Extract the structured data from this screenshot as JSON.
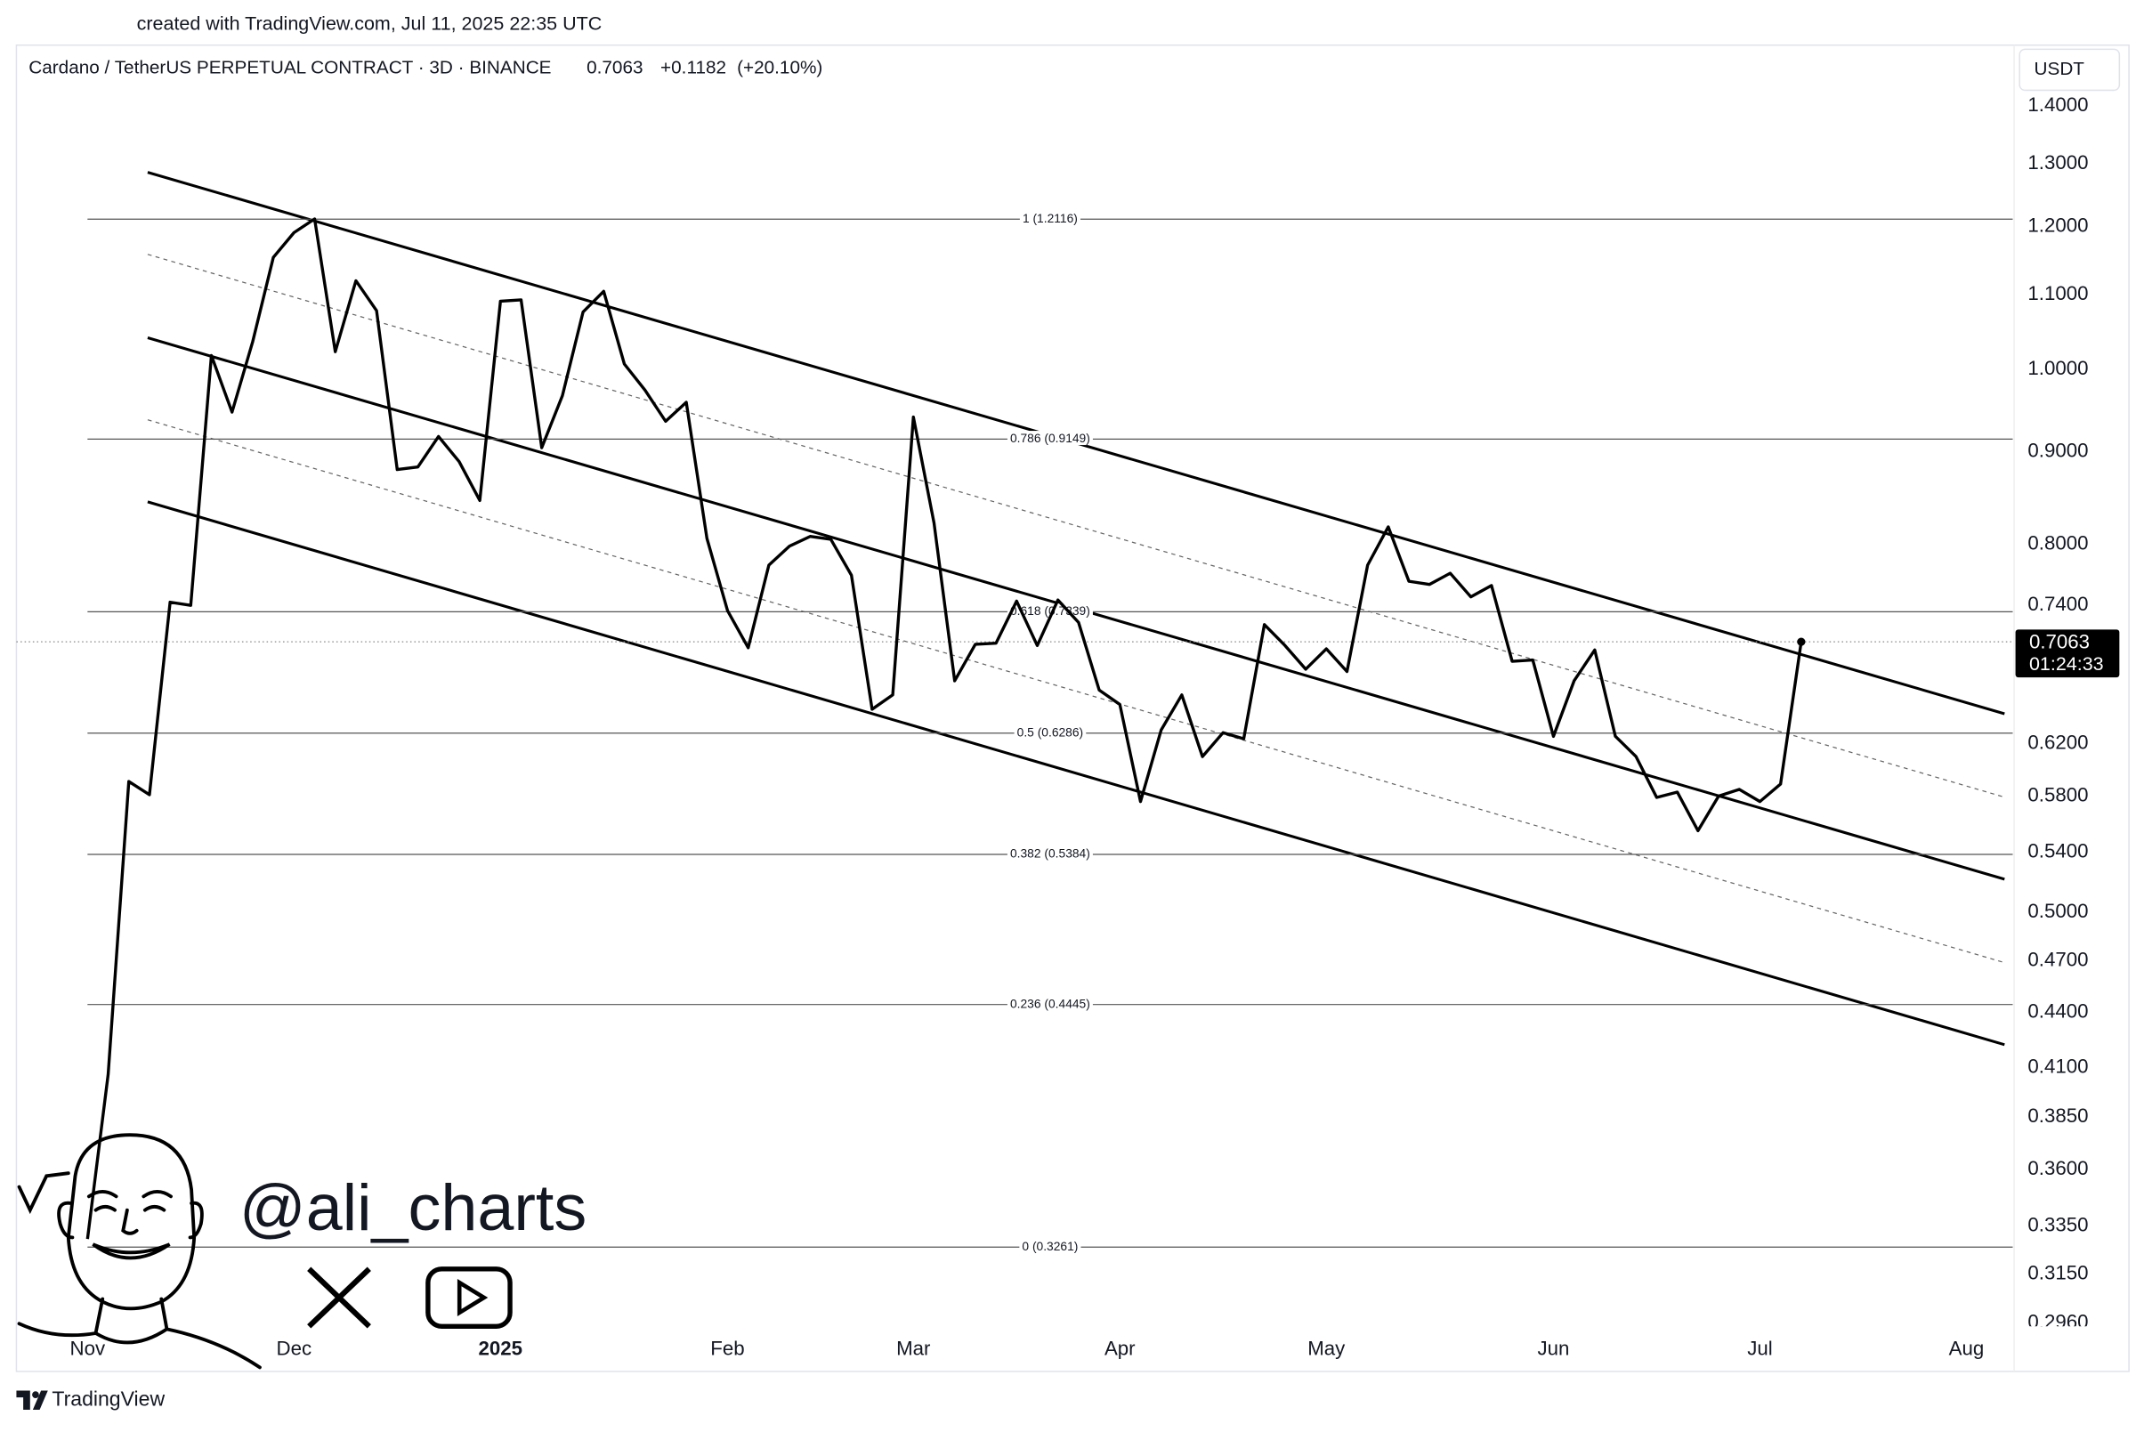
{
  "chart_data": {
    "type": "line",
    "created_with": "created with TradingView.com, Jul 11, 2025 22:35 UTC",
    "title": "Cardano / TetherUS PERPETUAL CONTRACT · 3D · BINANCE",
    "change": {
      "value": 0.1182,
      "label": "+0.1182"
    },
    "change_pct": {
      "value": 20.1,
      "label": "(+20.10%)"
    },
    "currency": "USDT",
    "countdown": "01:24:33",
    "watermark": "@ali_charts",
    "brand": "TradingView",
    "color": "#000000",
    "log_scale": true,
    "grid": false,
    "categories": [
      "Nov",
      null,
      null,
      null,
      null,
      null,
      null,
      null,
      null,
      null,
      "Dec",
      null,
      null,
      null,
      null,
      null,
      null,
      null,
      null,
      null,
      "2025",
      null,
      null,
      null,
      null,
      null,
      null,
      null,
      null,
      null,
      null,
      "Feb",
      null,
      null,
      null,
      null,
      null,
      null,
      null,
      null,
      "Mar",
      null,
      null,
      null,
      null,
      null,
      null,
      null,
      null,
      null,
      "Apr",
      null,
      null,
      null,
      null,
      null,
      null,
      null,
      null,
      null,
      "May",
      null,
      null,
      null,
      null,
      null,
      null,
      null,
      null,
      null,
      null,
      "Jun",
      null,
      null,
      null,
      null,
      null,
      null,
      null,
      null,
      null,
      "Jul",
      null,
      null,
      null,
      null,
      null,
      null,
      null,
      null,
      null,
      "Aug"
    ],
    "values": [
      0.3295,
      0.4066,
      0.591,
      0.581,
      0.743,
      0.74,
      1.018,
      0.947,
      1.036,
      1.154,
      1.191,
      1.212,
      1.023,
      1.12,
      1.078,
      0.88,
      0.883,
      0.918,
      0.889,
      0.846,
      1.091,
      1.093,
      0.905,
      0.967,
      1.076,
      1.105,
      1.007,
      0.974,
      0.936,
      0.959,
      0.806,
      0.735,
      0.701,
      0.779,
      0.798,
      0.808,
      0.805,
      0.769,
      0.648,
      0.66,
      0.941,
      0.822,
      0.672,
      0.704,
      0.705,
      0.744,
      0.703,
      0.745,
      0.724,
      0.664,
      0.652,
      0.576,
      0.631,
      0.66,
      0.61,
      0.629,
      0.624,
      0.722,
      0.703,
      0.682,
      0.7,
      0.68,
      0.779,
      0.818,
      0.763,
      0.76,
      0.771,
      0.748,
      0.759,
      0.689,
      0.69,
      0.626,
      0.672,
      0.699,
      0.626,
      0.61,
      0.579,
      0.583,
      0.555,
      0.58,
      0.585,
      0.576,
      0.589,
      0.7063,
      null,
      null,
      null,
      null,
      null,
      null,
      null,
      null
    ],
    "ylim": [
      0.2937,
      1.513
    ],
    "yticks": [
      {
        "value": 1.4,
        "label": "1.4000"
      },
      {
        "value": 1.3,
        "label": "1.3000"
      },
      {
        "value": 1.2,
        "label": "1.2000"
      },
      {
        "value": 1.1,
        "label": "1.1000"
      },
      {
        "value": 1.0,
        "label": "1.0000"
      },
      {
        "value": 0.9,
        "label": "0.9000"
      },
      {
        "value": 0.8,
        "label": "0.8000"
      },
      {
        "value": 0.74,
        "label": "0.7400"
      },
      {
        "value": 0.62,
        "label": "0.6200"
      },
      {
        "value": 0.58,
        "label": "0.5800"
      },
      {
        "value": 0.54,
        "label": "0.5400"
      },
      {
        "value": 0.5,
        "label": "0.5000"
      },
      {
        "value": 0.47,
        "label": "0.4700"
      },
      {
        "value": 0.44,
        "label": "0.4400"
      },
      {
        "value": 0.41,
        "label": "0.4100"
      },
      {
        "value": 0.385,
        "label": "0.3850"
      },
      {
        "value": 0.36,
        "label": "0.3600"
      },
      {
        "value": 0.335,
        "label": "0.3350"
      },
      {
        "value": 0.315,
        "label": "0.3150"
      },
      {
        "value": 0.296,
        "label": "0.2960"
      }
    ],
    "fib_levels": [
      {
        "value": 1.2116,
        "label": "1 (1.2116)"
      },
      {
        "value": 0.9149,
        "label": "0.786 (0.9149)"
      },
      {
        "value": 0.7339,
        "label": "0.618 (0.7339)"
      },
      {
        "value": 0.6286,
        "label": "0.5 (0.6286)"
      },
      {
        "value": 0.5384,
        "label": "0.382 (0.5384)"
      },
      {
        "value": 0.4445,
        "label": "0.236 (0.4445)"
      },
      {
        "value": 0.3261,
        "label": "0 (0.3261)"
      }
    ]
  }
}
